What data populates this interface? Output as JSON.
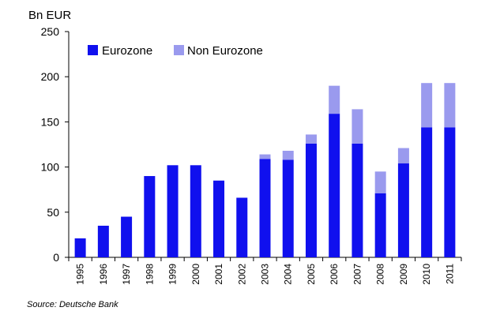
{
  "chart_data": {
    "type": "bar",
    "stacked": true,
    "ylabel": "Bn EUR",
    "ylim": [
      0,
      250
    ],
    "yticks": [
      0,
      50,
      100,
      150,
      200,
      250
    ],
    "categories": [
      "1995",
      "1996",
      "1997",
      "1998",
      "1999",
      "2000",
      "2001",
      "2002",
      "2003",
      "2004",
      "2005",
      "2006",
      "2007",
      "2008",
      "2009",
      "2010",
      "2011"
    ],
    "series": [
      {
        "name": "Eurozone",
        "color": "#1010ee",
        "values": [
          21,
          35,
          45,
          90,
          102,
          102,
          85,
          66,
          109,
          108,
          126,
          159,
          126,
          71,
          104,
          144,
          144
        ]
      },
      {
        "name": "Non Eurozone",
        "color": "#9a9aee",
        "values": [
          0,
          0,
          0,
          0,
          0,
          0,
          0,
          0,
          5,
          10,
          10,
          31,
          38,
          24,
          17,
          49,
          49
        ]
      }
    ],
    "legend_position": "top-left",
    "grid": false
  },
  "source": "Source:  Deutsche Bank"
}
